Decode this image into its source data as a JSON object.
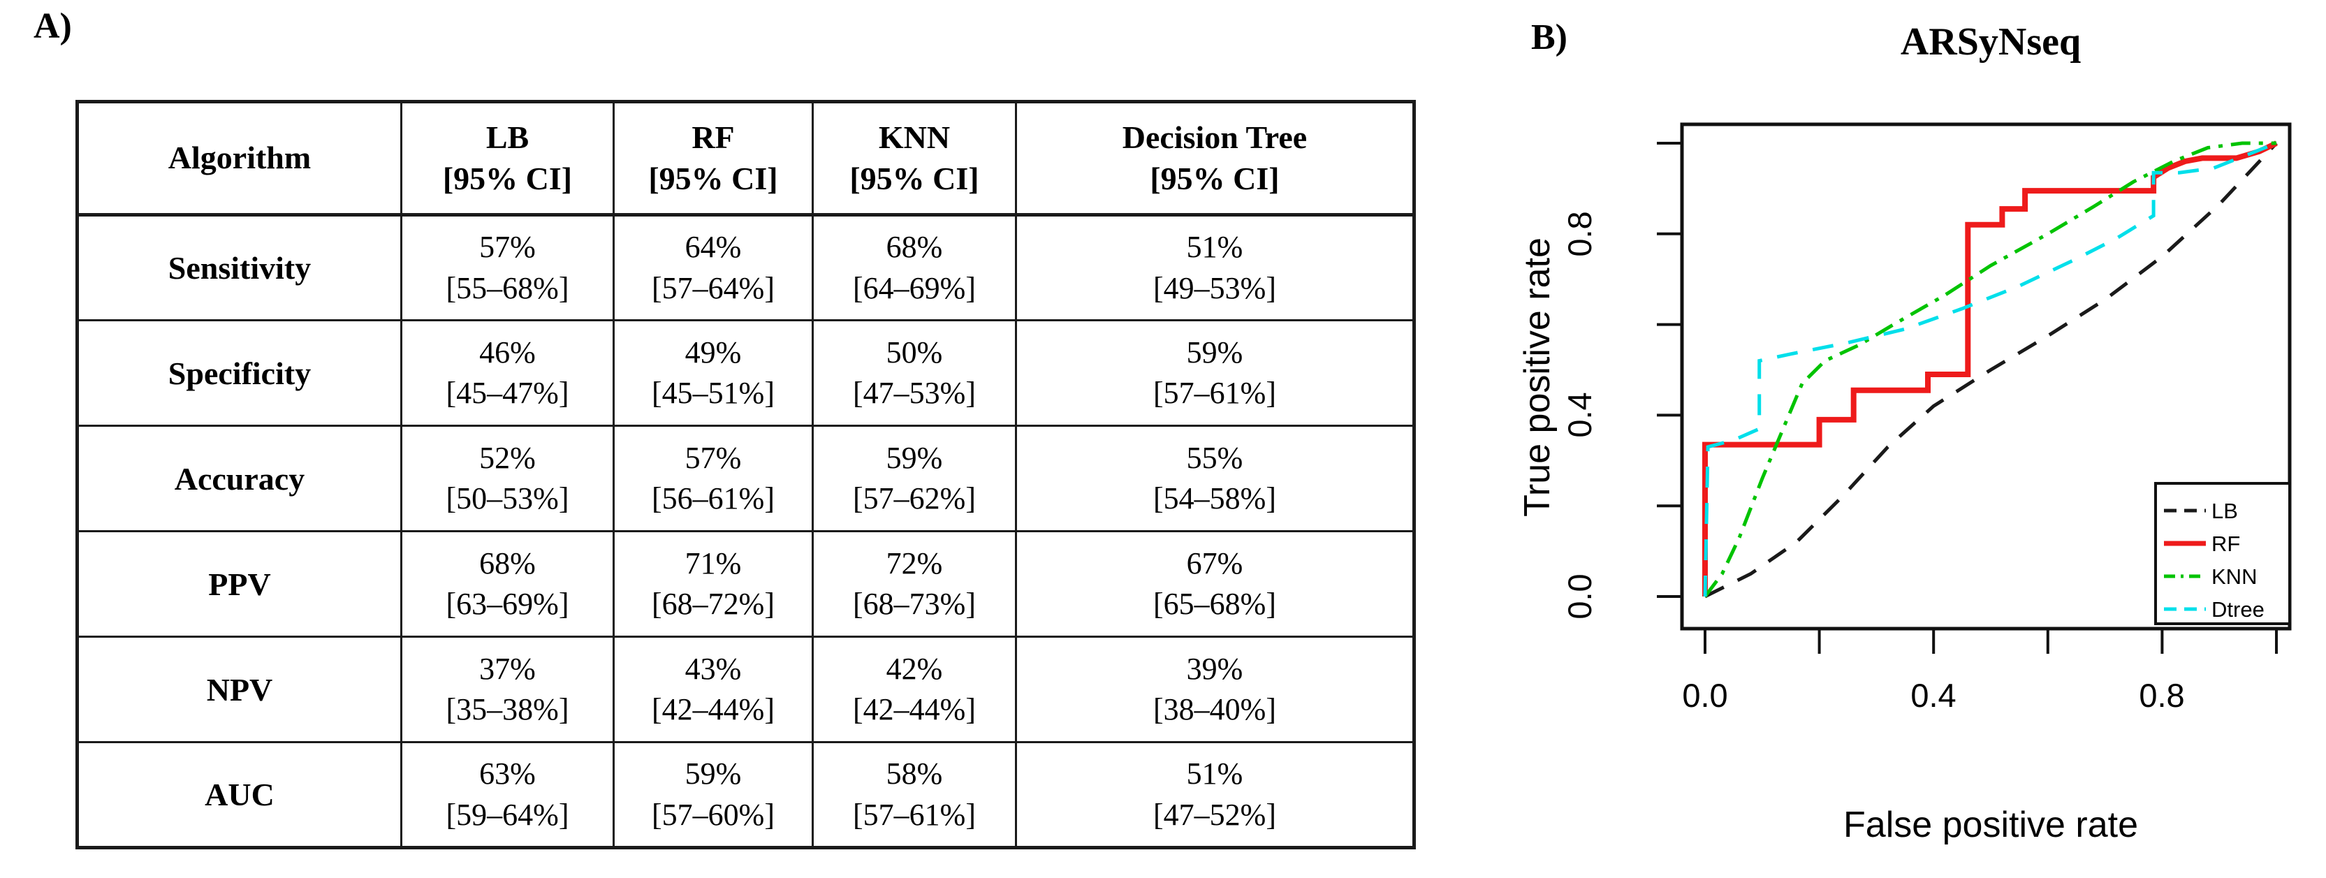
{
  "panel_a": {
    "label": "A)",
    "table": {
      "header": {
        "algorithm": "Algorithm",
        "columns": [
          {
            "name": "LB",
            "ci": "[95% CI]"
          },
          {
            "name": "RF",
            "ci": "[95% CI]"
          },
          {
            "name": "KNN",
            "ci": "[95% CI]"
          },
          {
            "name": "Decision Tree",
            "ci": "[95% CI]"
          }
        ]
      },
      "rows": [
        {
          "metric": "Sensitivity",
          "values": [
            {
              "value": "57%",
              "ci": "[55–68%]"
            },
            {
              "value": "64%",
              "ci": "[57–64%]"
            },
            {
              "value": "68%",
              "ci": "[64–69%]"
            },
            {
              "value": "51%",
              "ci": "[49–53%]"
            }
          ]
        },
        {
          "metric": "Specificity",
          "values": [
            {
              "value": "46%",
              "ci": "[45–47%]"
            },
            {
              "value": "49%",
              "ci": "[45–51%]"
            },
            {
              "value": "50%",
              "ci": "[47–53%]"
            },
            {
              "value": "59%",
              "ci": "[57–61%]"
            }
          ]
        },
        {
          "metric": "Accuracy",
          "values": [
            {
              "value": "52%",
              "ci": "[50–53%]"
            },
            {
              "value": "57%",
              "ci": "[56–61%]"
            },
            {
              "value": "59%",
              "ci": "[57–62%]"
            },
            {
              "value": "55%",
              "ci": "[54–58%]"
            }
          ]
        },
        {
          "metric": "PPV",
          "values": [
            {
              "value": "68%",
              "ci": "[63–69%]"
            },
            {
              "value": "71%",
              "ci": "[68–72%]"
            },
            {
              "value": "72%",
              "ci": "[68–73%]"
            },
            {
              "value": "67%",
              "ci": "[65–68%]"
            }
          ]
        },
        {
          "metric": "NPV",
          "values": [
            {
              "value": "37%",
              "ci": "[35–38%]"
            },
            {
              "value": "43%",
              "ci": "[42–44%]"
            },
            {
              "value": "42%",
              "ci": "[42–44%]"
            },
            {
              "value": "39%",
              "ci": "[38–40%]"
            }
          ]
        },
        {
          "metric": "AUC",
          "values": [
            {
              "value": "63%",
              "ci": "[59–64%]"
            },
            {
              "value": "59%",
              "ci": "[57–60%]"
            },
            {
              "value": "58%",
              "ci": "[57–61%]"
            },
            {
              "value": "51%",
              "ci": "[47–52%]"
            }
          ]
        }
      ]
    }
  },
  "panel_b": {
    "label": "B)",
    "title": "ARSyNseq",
    "xlabel": "False positive rate",
    "ylabel": "True positive rate",
    "x_tick_labels": [
      "0.0",
      "0.4",
      "0.8"
    ],
    "y_tick_labels": [
      "0.0",
      "0.4",
      "0.8"
    ]
  },
  "chart_data": {
    "type": "line",
    "title": "ARSyNseq",
    "xlabel": "False positive rate",
    "ylabel": "True positive rate",
    "xlim": [
      0,
      1
    ],
    "ylim": [
      0,
      1
    ],
    "x_ticks": [
      0,
      0.2,
      0.4,
      0.6,
      0.8,
      1.0
    ],
    "y_ticks": [
      0,
      0.2,
      0.4,
      0.6,
      0.8,
      1.0
    ],
    "labeled_tick_positions": [
      0,
      0.4,
      0.8
    ],
    "grid": false,
    "legend_position": "bottom-right",
    "series": [
      {
        "name": "LB",
        "color": "#1a1a1a",
        "line_style": "dashed",
        "auc_from_table": "63%",
        "points": [
          [
            0,
            0
          ],
          [
            0.08,
            0.05
          ],
          [
            0.16,
            0.12
          ],
          [
            0.24,
            0.22
          ],
          [
            0.32,
            0.33
          ],
          [
            0.4,
            0.42
          ],
          [
            0.5,
            0.5
          ],
          [
            0.6,
            0.575
          ],
          [
            0.7,
            0.655
          ],
          [
            0.8,
            0.75
          ],
          [
            0.9,
            0.865
          ],
          [
            1,
            1
          ]
        ]
      },
      {
        "name": "RF",
        "color": "#ee1b1b",
        "line_style": "solid",
        "auc_from_table": "59%",
        "points": [
          [
            0,
            0
          ],
          [
            0,
            0.335
          ],
          [
            0.2,
            0.335
          ],
          [
            0.2,
            0.39
          ],
          [
            0.26,
            0.39
          ],
          [
            0.26,
            0.455
          ],
          [
            0.39,
            0.455
          ],
          [
            0.39,
            0.49
          ],
          [
            0.46,
            0.49
          ],
          [
            0.46,
            0.82
          ],
          [
            0.52,
            0.82
          ],
          [
            0.52,
            0.855
          ],
          [
            0.56,
            0.855
          ],
          [
            0.56,
            0.895
          ],
          [
            0.785,
            0.895
          ],
          [
            0.785,
            0.925
          ],
          [
            0.81,
            0.945
          ],
          [
            0.84,
            0.96
          ],
          [
            0.87,
            0.967
          ],
          [
            0.93,
            0.967
          ],
          [
            0.97,
            0.982
          ],
          [
            1,
            1
          ]
        ]
      },
      {
        "name": "KNN",
        "color": "#00c300",
        "line_style": "dashdot",
        "auc_from_table": "58%",
        "points": [
          [
            0,
            0
          ],
          [
            0.03,
            0.05
          ],
          [
            0.06,
            0.13
          ],
          [
            0.1,
            0.26
          ],
          [
            0.14,
            0.38
          ],
          [
            0.17,
            0.47
          ],
          [
            0.21,
            0.52
          ],
          [
            0.27,
            0.555
          ],
          [
            0.33,
            0.6
          ],
          [
            0.42,
            0.665
          ],
          [
            0.5,
            0.73
          ],
          [
            0.6,
            0.8
          ],
          [
            0.68,
            0.86
          ],
          [
            0.75,
            0.915
          ],
          [
            0.82,
            0.96
          ],
          [
            0.88,
            0.99
          ],
          [
            0.94,
            1.0
          ],
          [
            1,
            1
          ]
        ]
      },
      {
        "name": "Dtree",
        "color": "#00dfea",
        "line_style": "dashed",
        "auc_from_table": "51%",
        "points": [
          [
            0,
            0
          ],
          [
            0.005,
            0.33
          ],
          [
            0.05,
            0.345
          ],
          [
            0.095,
            0.37
          ],
          [
            0.095,
            0.52
          ],
          [
            0.15,
            0.535
          ],
          [
            0.25,
            0.56
          ],
          [
            0.35,
            0.59
          ],
          [
            0.45,
            0.635
          ],
          [
            0.55,
            0.685
          ],
          [
            0.65,
            0.745
          ],
          [
            0.72,
            0.79
          ],
          [
            0.785,
            0.84
          ],
          [
            0.785,
            0.935
          ],
          [
            0.83,
            0.935
          ],
          [
            0.89,
            0.945
          ],
          [
            1,
            1
          ]
        ]
      }
    ]
  }
}
